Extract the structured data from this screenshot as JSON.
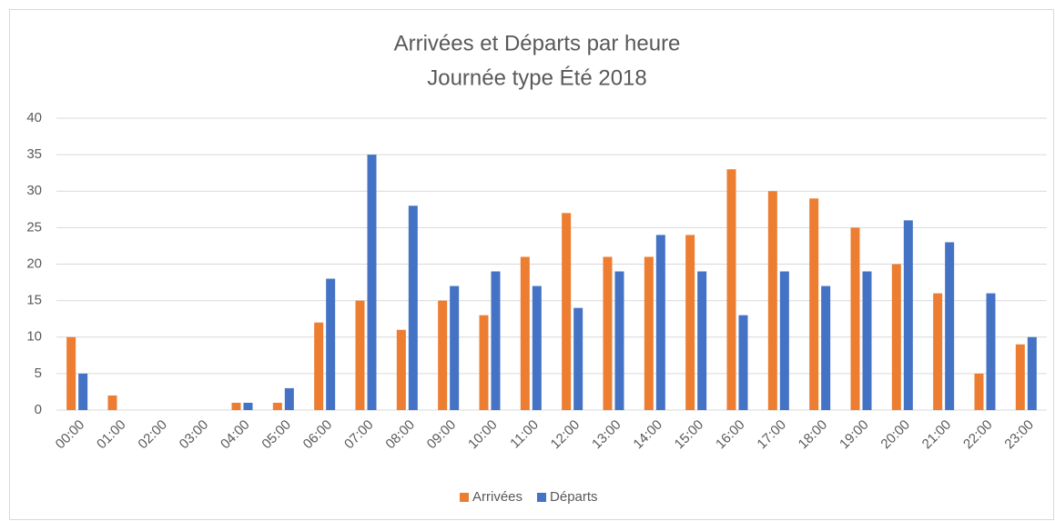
{
  "chart_data": {
    "type": "bar",
    "title": "Arrivées et Départs par heure",
    "subtitle": "Journée type Été 2018",
    "categories": [
      "00:00",
      "01:00",
      "02:00",
      "03:00",
      "04:00",
      "05:00",
      "06:00",
      "07:00",
      "08:00",
      "09:00",
      "10:00",
      "11:00",
      "12:00",
      "13:00",
      "14:00",
      "15:00",
      "16:00",
      "17:00",
      "18:00",
      "19:00",
      "20:00",
      "21:00",
      "22:00",
      "23:00"
    ],
    "series": [
      {
        "name": "Arrivées",
        "color": "#ed7d31",
        "values": [
          10,
          2,
          0,
          0,
          1,
          1,
          12,
          15,
          11,
          15,
          13,
          21,
          27,
          21,
          21,
          24,
          33,
          30,
          29,
          25,
          20,
          16,
          5,
          9
        ]
      },
      {
        "name": "Départs",
        "color": "#4472c4",
        "values": [
          5,
          0,
          0,
          0,
          1,
          3,
          18,
          35,
          28,
          17,
          19,
          17,
          14,
          19,
          24,
          19,
          13,
          19,
          17,
          19,
          26,
          23,
          16,
          10
        ]
      }
    ],
    "ylim": [
      0,
      40
    ],
    "yticks": [
      0,
      5,
      10,
      15,
      20,
      25,
      30,
      35,
      40
    ],
    "grid": true,
    "legend": "bottom"
  }
}
